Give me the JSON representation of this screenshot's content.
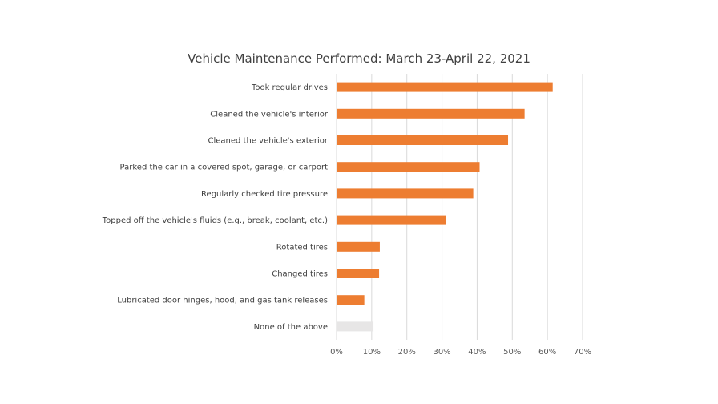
{
  "chart_data": {
    "type": "bar",
    "orientation": "horizontal",
    "title": "Vehicle Maintenance Performed: March 23-April 22, 2021",
    "xlabel": "",
    "ylabel": "",
    "categories": [
      "Took regular drives",
      "Cleaned the vehicle's interior",
      "Cleaned the vehicle's exterior",
      "Parked the car in a covered spot, garage, or carport",
      "Regularly checked tire pressure",
      "Topped off the vehicle's fluids (e.g., break, coolant, etc.)",
      "Rotated tires",
      "Changed tires",
      "Lubricated door hinges, hood, and gas tank releases",
      "None of the above"
    ],
    "values": [
      61.5,
      53.5,
      48.8,
      40.7,
      38.9,
      31.2,
      12.3,
      12.1,
      7.9,
      10.5
    ],
    "bar_colors": [
      "#ed7d31",
      "#ed7d31",
      "#ed7d31",
      "#ed7d31",
      "#ed7d31",
      "#ed7d31",
      "#ed7d31",
      "#ed7d31",
      "#ed7d31",
      "#e7e6e6"
    ],
    "xlim": [
      0,
      70
    ],
    "xticks": [
      0,
      10,
      20,
      30,
      40,
      50,
      60,
      70
    ],
    "xtick_labels": [
      "0%",
      "10%",
      "20%",
      "30%",
      "40%",
      "50%",
      "60%",
      "70%"
    ],
    "grid": "vertical",
    "legend": "none"
  }
}
